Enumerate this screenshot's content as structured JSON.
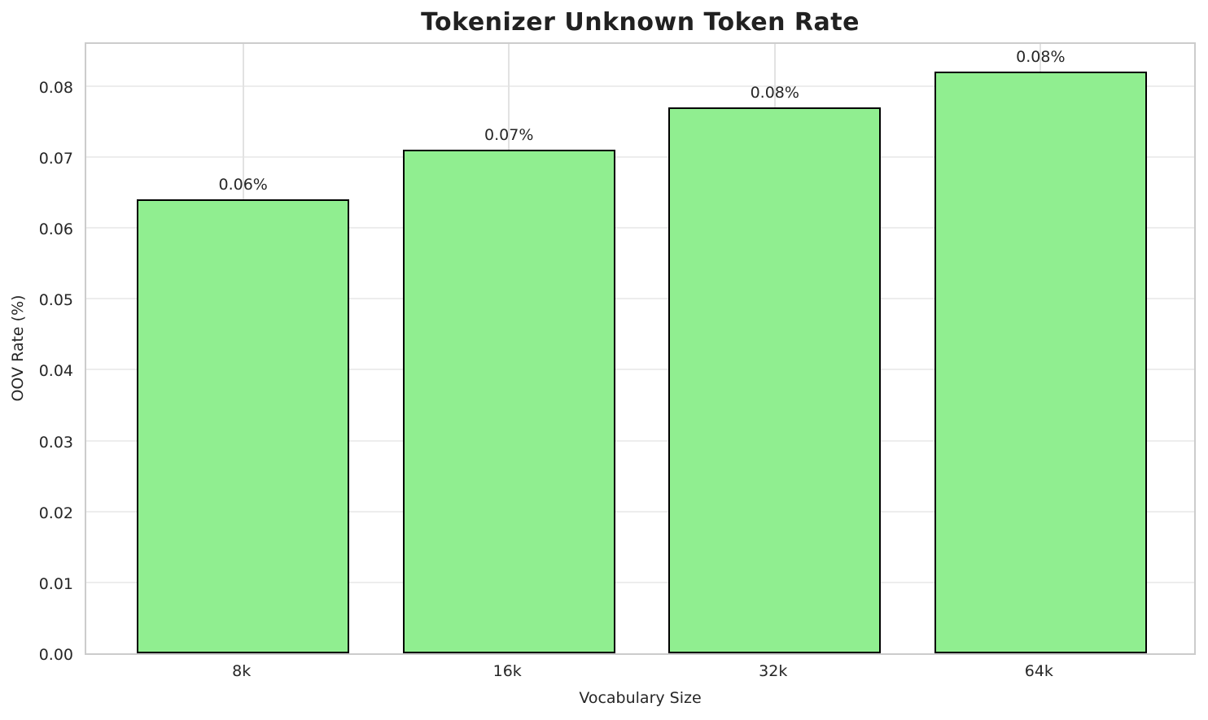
{
  "chart_data": {
    "type": "bar",
    "title": "Tokenizer Unknown Token Rate",
    "xlabel": "Vocabulary Size",
    "ylabel": "OOV Rate (%)",
    "categories": [
      "8k",
      "16k",
      "32k",
      "64k"
    ],
    "values": [
      0.064,
      0.071,
      0.077,
      0.082
    ],
    "bar_labels": [
      "0.06%",
      "0.07%",
      "0.08%",
      "0.08%"
    ],
    "yticks": [
      0.0,
      0.01,
      0.02,
      0.03,
      0.04,
      0.05,
      0.06,
      0.07,
      0.08
    ],
    "ytick_labels": [
      "0.00",
      "0.01",
      "0.02",
      "0.03",
      "0.04",
      "0.05",
      "0.06",
      "0.07",
      "0.08"
    ],
    "ylim": [
      0,
      0.0864
    ],
    "bar_width_ratio": 0.8,
    "grid": true,
    "legend": null,
    "colors": {
      "bar_fill": "#90EE90",
      "bar_edge": "#000000",
      "grid_h": "#ededed",
      "grid_v": "#e2e2e2",
      "spine": "#cccccc",
      "text": "#262626",
      "title": "#212121",
      "background": "#ffffff"
    }
  }
}
